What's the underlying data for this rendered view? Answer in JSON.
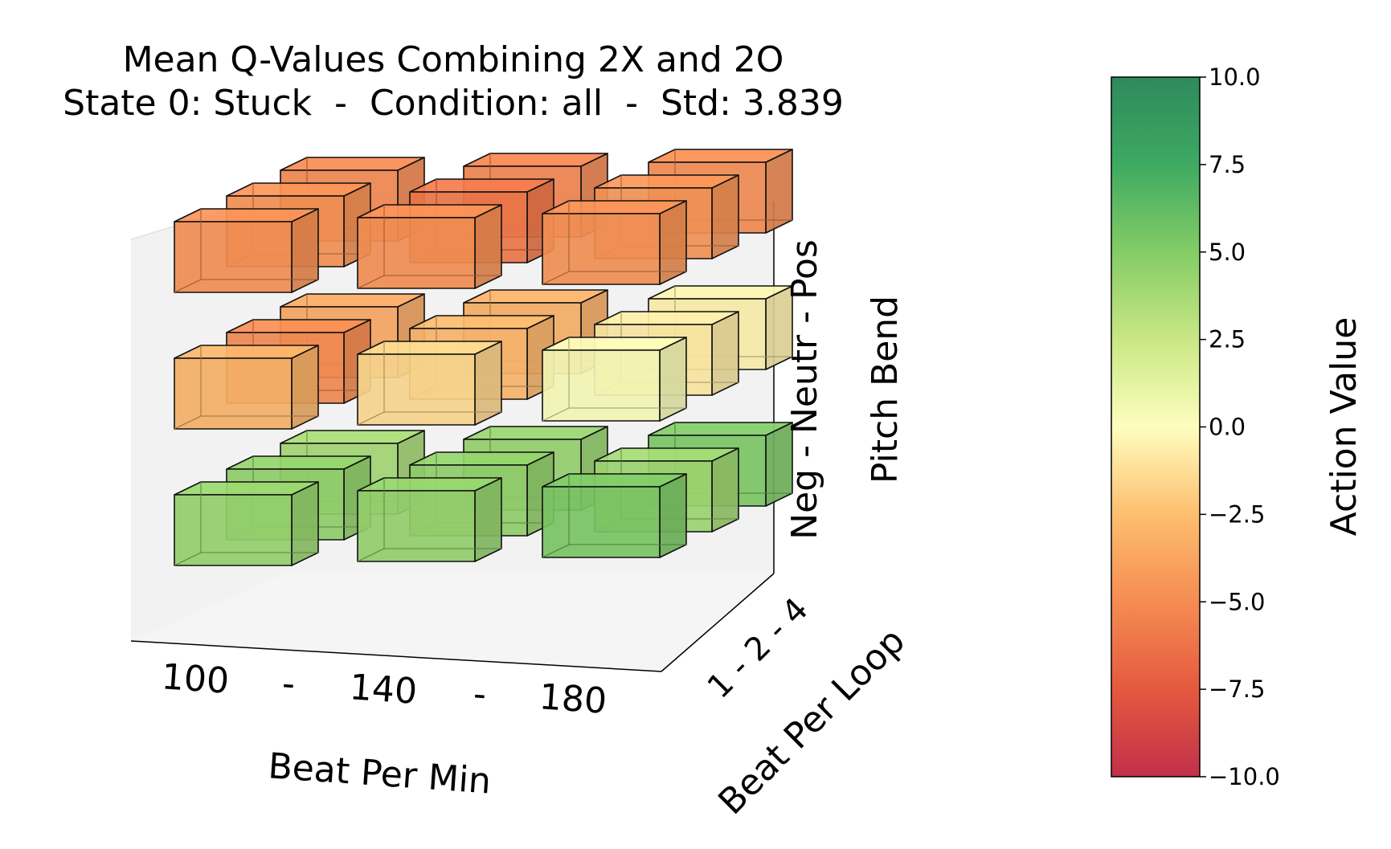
{
  "chart_data": {
    "type": "bar3d",
    "title": "Mean Q-Values Combining 2X and 2O",
    "subtitle": "State 0: Stuck  -  Condition: all  -  Std: 3.839",
    "x_axis": {
      "label": "Beat Per Min",
      "ticks": [
        "100",
        "-",
        "140",
        "-",
        "180"
      ],
      "categories": [
        "100",
        "140",
        "180"
      ]
    },
    "y_axis": {
      "label": "Beat Per Loop",
      "ticks": "1 - 2 - 4",
      "categories": [
        "1",
        "2",
        "4"
      ]
    },
    "z_axis": {
      "label": "Pitch Bend",
      "ticks": "Neg - Neutr - Pos",
      "categories": [
        "Neg",
        "Neutr",
        "Pos"
      ]
    },
    "colorbar": {
      "label": "Action Value",
      "range": [
        -10,
        10
      ],
      "ticks": [
        "10.0",
        "7.5",
        "5.0",
        "2.5",
        "0.0",
        "−2.5",
        "−5.0",
        "−7.5",
        "−10.0"
      ],
      "colormap": "RdYlGn",
      "stops": [
        "#c1304a",
        "#e5593f",
        "#f58c52",
        "#fdbe6f",
        "#fefebe",
        "#c9e784",
        "#84cc66",
        "#3eaa62",
        "#2e8a5c"
      ]
    },
    "values": {
      "Pos": [
        [
          -4.8,
          -4.8,
          -4.7
        ],
        [
          -4.7,
          -6.0,
          -4.6
        ],
        [
          -5.2,
          -5.4,
          -5.0
        ]
      ],
      "Neutr": [
        [
          -3.0,
          -1.5,
          0.3
        ],
        [
          -5.0,
          -2.8,
          -0.8
        ],
        [
          -3.6,
          -3.2,
          -0.6
        ]
      ],
      "Neg": [
        [
          4.3,
          4.4,
          5.3
        ],
        [
          4.5,
          4.5,
          4.0
        ],
        [
          3.8,
          4.4,
          5.2
        ]
      ]
    }
  }
}
